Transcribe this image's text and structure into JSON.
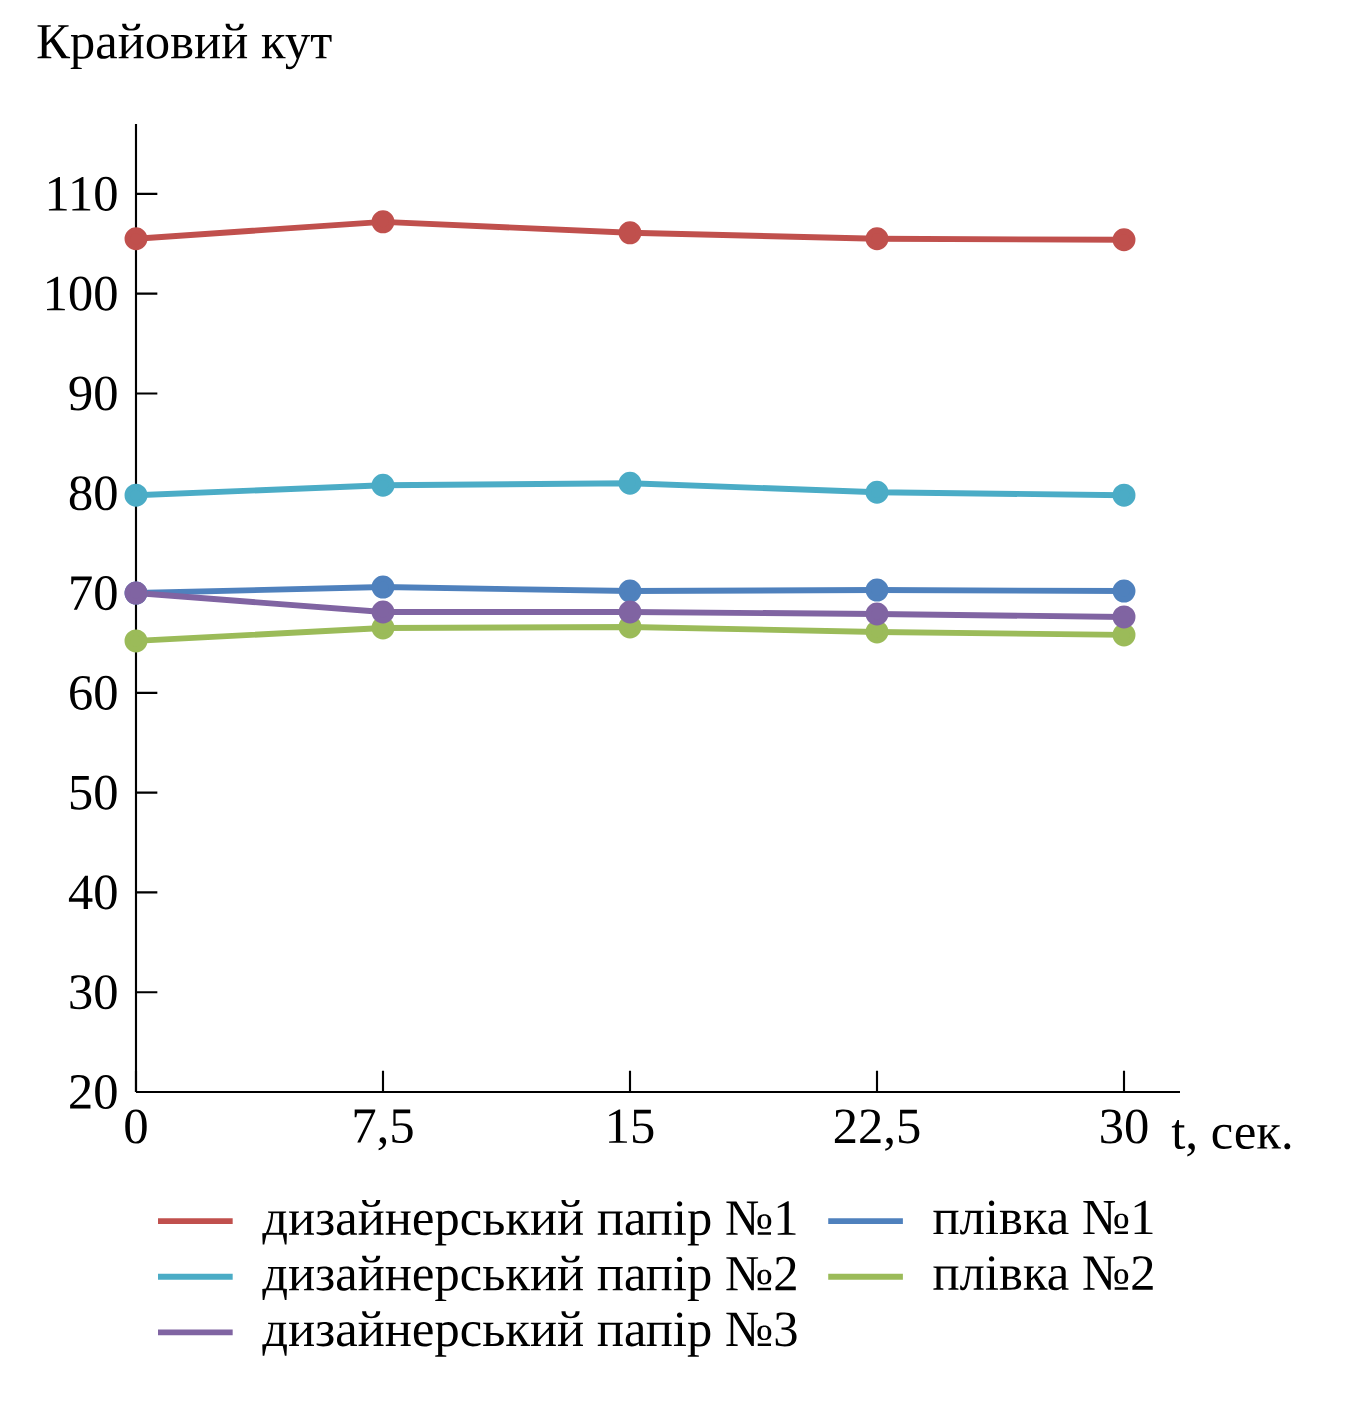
{
  "chart_data": {
    "type": "line",
    "ylabel": "Крайовий кут",
    "xlabel": "t, сек.",
    "x": [
      0,
      7.5,
      15,
      22.5,
      30
    ],
    "xlim": [
      0,
      31.7
    ],
    "ylim": [
      20,
      117
    ],
    "xticks": [
      0,
      {
        "value": 7.5,
        "label": "7,5"
      },
      15,
      {
        "value": 22.5,
        "label": "22,5"
      },
      30
    ],
    "yticks": [
      20,
      30,
      40,
      50,
      60,
      70,
      80,
      90,
      100,
      110
    ],
    "marker": "circle",
    "line_style": "solid",
    "legend": "bottom",
    "grid": false,
    "series": [
      {
        "name": "дизайнерський папір №1",
        "color": "#c0504d",
        "values": [
          105.5,
          107.2,
          106.1,
          105.5,
          105.4
        ]
      },
      {
        "name": "плівка №1",
        "color": "#4f81bd",
        "values": [
          70,
          70.6,
          70.2,
          70.3,
          70.2
        ]
      },
      {
        "name": "дизайнерський папір №2",
        "color": "#4bacc6",
        "values": [
          79.8,
          80.8,
          81,
          80.1,
          79.8
        ]
      },
      {
        "name": "плівка №2",
        "color": "#9bbb59",
        "values": [
          65.2,
          66.5,
          66.6,
          66.1,
          65.8
        ]
      },
      {
        "name": "дизайнерський папір №3",
        "color": "#8064a2",
        "values": [
          70,
          68.1,
          68.1,
          67.9,
          67.6
        ]
      }
    ]
  }
}
